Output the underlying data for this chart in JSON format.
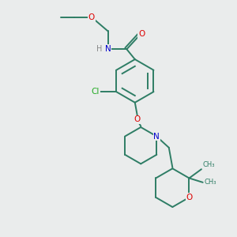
{
  "background_color": "#eaecec",
  "bond_color": "#2e7d65",
  "O_color": "#dd0000",
  "N_color": "#0000cc",
  "Cl_color": "#22aa22",
  "H_color": "#888888",
  "figsize": [
    3.0,
    3.0
  ],
  "dpi": 100,
  "xlim": [
    0,
    10
  ],
  "ylim": [
    0,
    10
  ]
}
